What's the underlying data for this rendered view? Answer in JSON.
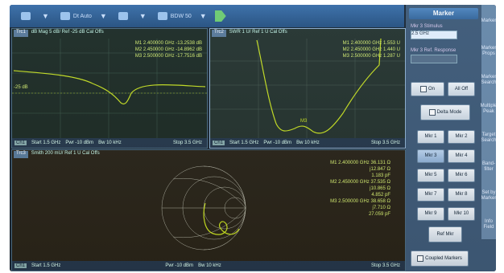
{
  "toolbar": {
    "items": [
      {
        "label": "",
        "icon": "cursor-icon"
      },
      {
        "label": "Dt Auto",
        "icon": "trace-icon"
      },
      {
        "label": "",
        "icon": "measure-icon"
      },
      {
        "label": "BDW 50",
        "icon": "bandwidth-icon"
      }
    ]
  },
  "panels": {
    "top_left": {
      "tag": "Trc1",
      "title": "dB Mag 5 dB/ Ref -25 dB Cal Offs",
      "ref_label": "-25 dB",
      "markers": [
        {
          "name": "M1",
          "freq": "2.400000 GHz",
          "value": "-13.2538 dB"
        },
        {
          "name": "M2",
          "freq": "2.450000 GHz",
          "value": "-14.8962 dB"
        },
        {
          "name": "M3",
          "freq": "2.500000 GHz",
          "value": "-17.7516 dB"
        }
      ],
      "status": {
        "ch": "Ch1",
        "start": "Start 1.5 GHz",
        "pwr": "Pwr -10 dBm",
        "bw": "Bw 10 kHz",
        "stop": "Stop 3.5 GHz"
      }
    },
    "top_right": {
      "tag": "Trc2",
      "title": "SWR 1 U/ Ref 1 U Cal Offs",
      "markers": [
        {
          "name": "M1",
          "freq": "2.400000 GHz",
          "value": "1.553 U"
        },
        {
          "name": "M2",
          "freq": "2.450000 GHz",
          "value": "1.440 U"
        },
        {
          "name": "M3",
          "freq": "2.500000 GHz",
          "value": "1.287 U"
        }
      ],
      "marker_label": "M3",
      "status": {
        "ch": "Ch1",
        "start": "Start 1.5 GHz",
        "pwr": "Pwr -10 dBm",
        "bw": "Bw 10 kHz",
        "stop": "Stop 3.5 GHz"
      }
    },
    "bottom": {
      "tag": "Trc3",
      "title": "Smith 200 mU/ Ref 1 U Cal Offs",
      "markers": [
        {
          "name": "M1",
          "freq": "2.400000 GHz",
          "lines": [
            "36.131 Ω",
            "j12.847 Ω",
            "1.183 pF"
          ]
        },
        {
          "name": "M2",
          "freq": "2.450000 GHz",
          "lines": [
            "37.535 Ω",
            "j10.865 Ω",
            "4.852 pF"
          ]
        },
        {
          "name": "M3",
          "freq": "2.500000 GHz",
          "lines": [
            "38.658 Ω",
            "j7.710 Ω",
            "27.059 pF"
          ]
        }
      ],
      "status": {
        "ch": "Ch1",
        "start": "Start 1.5 GHz",
        "pwr": "Pwr -10 dBm",
        "bw": "Bw 10 kHz",
        "stop": "Stop 3.5 GHz"
      }
    }
  },
  "softkeys": {
    "title": "Marker",
    "stimulus_label": "Mkr 3 Stimulus",
    "stimulus_value": "2.5 GHz",
    "ref_label": "Mkr 3 Ref. Response",
    "on_label": "On",
    "all_off_label": "All Off",
    "delta_label": "Delta Mode",
    "marker_buttons": [
      "Mkr 1",
      "Mkr 2",
      "Mkr 3",
      "Mkr 4",
      "Mkr 5",
      "Mkr 6",
      "Mkr 7",
      "Mkr 8",
      "Mkr 9",
      "Mkr 10"
    ],
    "ref_mkr_label": "Ref Mkr",
    "coupled_label": "Coupled Markers",
    "side_tabs": [
      "Marker",
      "Marker Props",
      "Marker Search",
      "Multiple Peak",
      "Target Search",
      "Band-filter",
      "Set by Marker",
      "Info Field"
    ]
  }
}
